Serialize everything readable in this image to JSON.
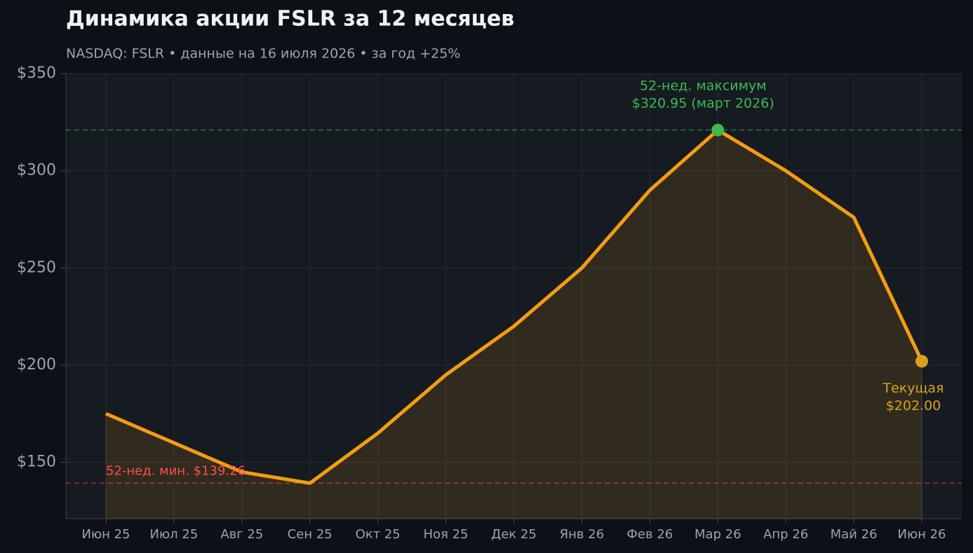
{
  "chart_data": {
    "type": "line",
    "title": "Динамика акции FSLR за 12 месяцев",
    "subtitle": "NASDAQ: FSLR  •  данные на 16 июля 2026  •  за год +25%",
    "categories": [
      "Июн 25",
      "Июл 25",
      "Авг 25",
      "Сен 25",
      "Окт 25",
      "Ноя 25",
      "Дек 25",
      "Янв 26",
      "Фев 26",
      "Мар 26",
      "Апр 26",
      "Май 26",
      "Июн 26"
    ],
    "series": [
      {
        "name": "FSLR",
        "color": "#f39c12",
        "values": [
          175,
          160,
          145,
          139.26,
          165,
          195,
          220,
          250,
          290,
          320.95,
          300,
          276,
          202
        ]
      }
    ],
    "ylim": [
      121,
      350
    ],
    "yticks": [
      {
        "value": 150,
        "label": "$150"
      },
      {
        "value": 200,
        "label": "$200"
      },
      {
        "value": 250,
        "label": "$250"
      },
      {
        "value": 300,
        "label": "$300"
      },
      {
        "value": 350,
        "label": "$350"
      }
    ],
    "grid": true,
    "hlines": [
      {
        "value": 320.95,
        "color": "#3fb950"
      },
      {
        "value": 139.26,
        "color": "#f85149"
      }
    ],
    "annotations": {
      "high": [
        "52-нед. максимум",
        "$320.95 (март 2026)"
      ],
      "current": [
        "Текущая",
        "$202.00"
      ],
      "low": "52-нед. мин. $139.26"
    },
    "high_color": "#3fb950",
    "current_color": "#d9a21b",
    "low_color": "#f85149"
  }
}
